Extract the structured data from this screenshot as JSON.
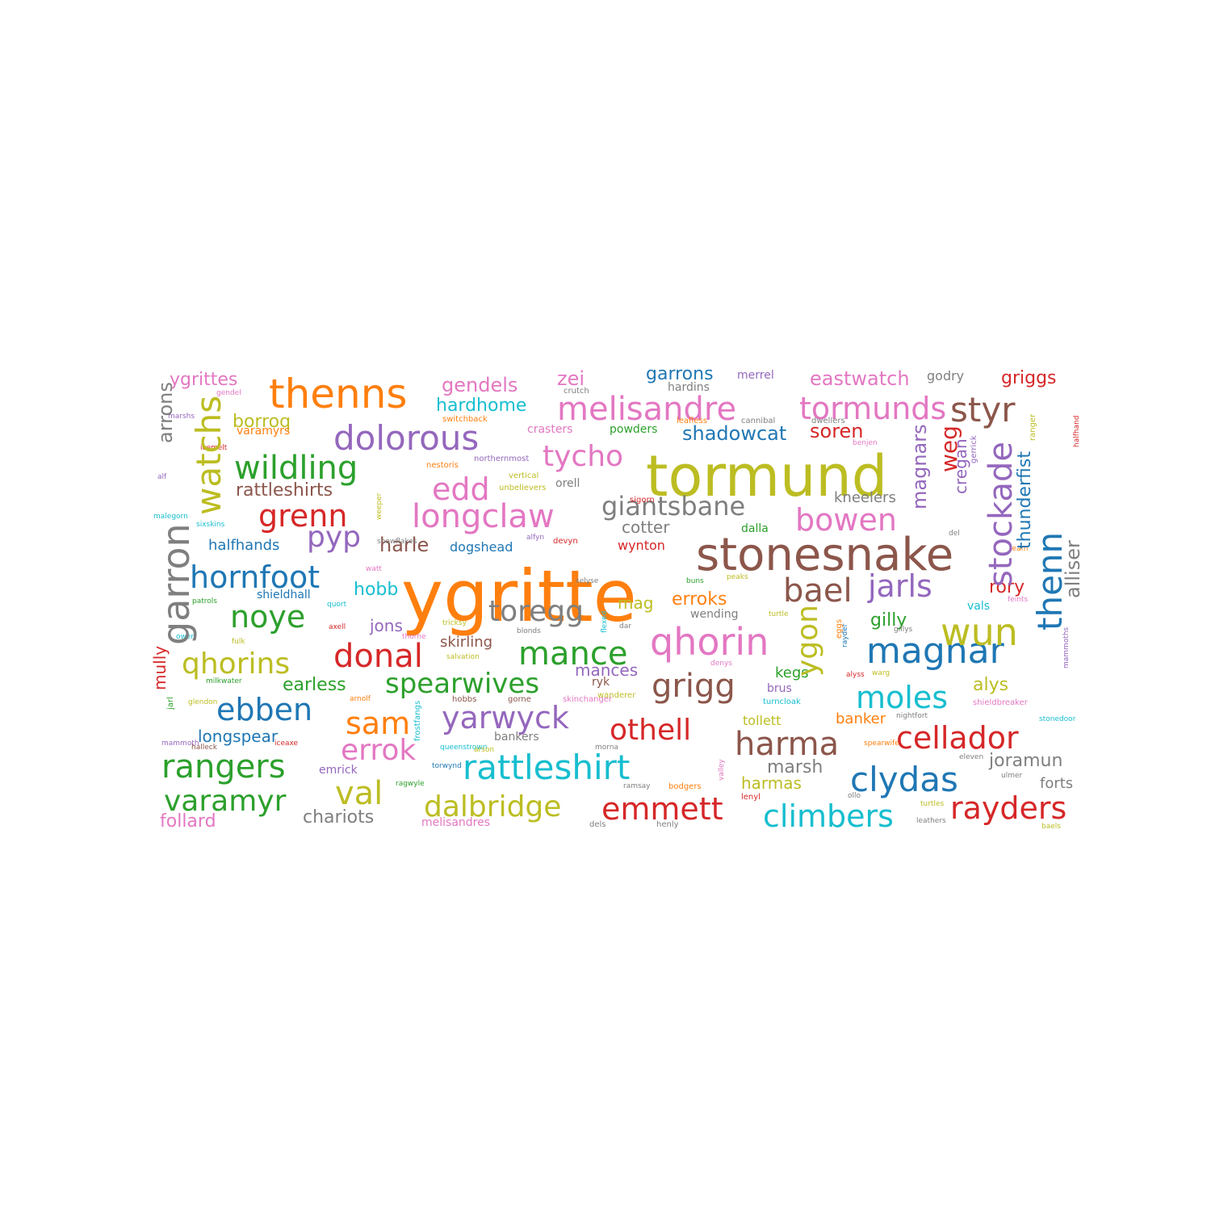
{
  "palette": {
    "blue": "#1f77b4",
    "orange": "#ff7f0e",
    "green": "#2ca02c",
    "red": "#d62728",
    "purple": "#9467bd",
    "brown": "#8c564b",
    "pink": "#e377c2",
    "gray": "#7f7f7f",
    "olive": "#bcbd22",
    "cyan": "#17becf"
  },
  "words": [
    {
      "text": "ygritte",
      "color": "orange"
    },
    {
      "text": "tormund",
      "color": "olive"
    },
    {
      "text": "stonesnake",
      "color": "brown"
    },
    {
      "text": "thenns",
      "color": "orange"
    },
    {
      "text": "melisandre",
      "color": "pink"
    },
    {
      "text": "tormunds",
      "color": "pink"
    },
    {
      "text": "styr",
      "color": "brown"
    },
    {
      "text": "dolorous",
      "color": "purple"
    },
    {
      "text": "wildling",
      "color": "green"
    },
    {
      "text": "tycho",
      "color": "pink"
    },
    {
      "text": "edd",
      "color": "pink"
    },
    {
      "text": "longclaw",
      "color": "pink"
    },
    {
      "text": "giantsbane",
      "color": "gray"
    },
    {
      "text": "grenn",
      "color": "red"
    },
    {
      "text": "pyp",
      "color": "purple"
    },
    {
      "text": "bowen",
      "color": "pink"
    },
    {
      "text": "hornfoot",
      "color": "blue"
    },
    {
      "text": "noye",
      "color": "green"
    },
    {
      "text": "toregg",
      "color": "gray"
    },
    {
      "text": "bael",
      "color": "brown"
    },
    {
      "text": "jarls",
      "color": "purple"
    },
    {
      "text": "qhorin",
      "color": "pink"
    },
    {
      "text": "magnar",
      "color": "blue"
    },
    {
      "text": "wun",
      "color": "olive"
    },
    {
      "text": "qhorins",
      "color": "olive"
    },
    {
      "text": "donal",
      "color": "red"
    },
    {
      "text": "mance",
      "color": "green"
    },
    {
      "text": "grigg",
      "color": "brown"
    },
    {
      "text": "moles",
      "color": "cyan"
    },
    {
      "text": "ebben",
      "color": "blue"
    },
    {
      "text": "spearwives",
      "color": "green"
    },
    {
      "text": "yarwyck",
      "color": "purple"
    },
    {
      "text": "sam",
      "color": "orange"
    },
    {
      "text": "othell",
      "color": "red"
    },
    {
      "text": "harma",
      "color": "brown"
    },
    {
      "text": "cellador",
      "color": "red"
    },
    {
      "text": "errok",
      "color": "pink"
    },
    {
      "text": "rangers",
      "color": "green"
    },
    {
      "text": "val",
      "color": "olive"
    },
    {
      "text": "rattleshirt",
      "color": "cyan"
    },
    {
      "text": "clydas",
      "color": "blue"
    },
    {
      "text": "varamyr",
      "color": "green"
    },
    {
      "text": "dalbridge",
      "color": "olive"
    },
    {
      "text": "emmett",
      "color": "red"
    },
    {
      "text": "climbers",
      "color": "cyan"
    },
    {
      "text": "rayders",
      "color": "red"
    },
    {
      "text": "ygrittes",
      "color": "pink"
    },
    {
      "text": "gendels",
      "color": "pink"
    },
    {
      "text": "zei",
      "color": "pink"
    },
    {
      "text": "garrons",
      "color": "blue"
    },
    {
      "text": "merrel",
      "color": "purple"
    },
    {
      "text": "eastwatch",
      "color": "pink"
    },
    {
      "text": "godry",
      "color": "gray"
    },
    {
      "text": "griggs",
      "color": "red"
    },
    {
      "text": "hardhome",
      "color": "cyan"
    },
    {
      "text": "borroq",
      "color": "olive"
    },
    {
      "text": "shadowcat",
      "color": "blue"
    },
    {
      "text": "soren",
      "color": "red"
    },
    {
      "text": "rattleshirts",
      "color": "brown"
    },
    {
      "text": "kneelers",
      "color": "gray"
    },
    {
      "text": "cotter",
      "color": "gray"
    },
    {
      "text": "harle",
      "color": "brown"
    },
    {
      "text": "halfhands",
      "color": "blue"
    },
    {
      "text": "dogshead",
      "color": "blue"
    },
    {
      "text": "wynton",
      "color": "red"
    },
    {
      "text": "hobb",
      "color": "cyan"
    },
    {
      "text": "shieldhall",
      "color": "blue"
    },
    {
      "text": "mag",
      "color": "olive"
    },
    {
      "text": "erroks",
      "color": "orange"
    },
    {
      "text": "rory",
      "color": "red"
    },
    {
      "text": "gilly",
      "color": "green"
    },
    {
      "text": "jons",
      "color": "purple"
    },
    {
      "text": "skirling",
      "color": "brown"
    },
    {
      "text": "mances",
      "color": "purple"
    },
    {
      "text": "kegs",
      "color": "green"
    },
    {
      "text": "alys",
      "color": "olive"
    },
    {
      "text": "earless",
      "color": "green"
    },
    {
      "text": "longspear",
      "color": "blue"
    },
    {
      "text": "banker",
      "color": "orange"
    },
    {
      "text": "marsh",
      "color": "gray"
    },
    {
      "text": "joramun",
      "color": "gray"
    },
    {
      "text": "harmas",
      "color": "olive"
    },
    {
      "text": "forts",
      "color": "gray"
    },
    {
      "text": "emrick",
      "color": "purple"
    },
    {
      "text": "follard",
      "color": "pink"
    },
    {
      "text": "chariots",
      "color": "gray"
    },
    {
      "text": "melisandres",
      "color": "pink"
    },
    {
      "text": "brus",
      "color": "purple"
    },
    {
      "text": "tollett",
      "color": "olive"
    },
    {
      "text": "wending",
      "color": "gray"
    },
    {
      "text": "powders",
      "color": "green"
    },
    {
      "text": "crasters",
      "color": "pink"
    },
    {
      "text": "orell",
      "color": "gray"
    },
    {
      "text": "dalla",
      "color": "green"
    },
    {
      "text": "hardins",
      "color": "gray"
    },
    {
      "text": "cannibal",
      "color": "gray"
    },
    {
      "text": "dwellers",
      "color": "gray"
    },
    {
      "text": "leafless",
      "color": "orange"
    },
    {
      "text": "sigorn",
      "color": "red"
    },
    {
      "text": "vertical",
      "color": "olive"
    },
    {
      "text": "unbelievers",
      "color": "olive"
    },
    {
      "text": "northernmost",
      "color": "purple"
    },
    {
      "text": "nestoris",
      "color": "orange"
    },
    {
      "text": "switchback",
      "color": "orange"
    },
    {
      "text": "crutch",
      "color": "gray"
    },
    {
      "text": "gendel",
      "color": "pink"
    },
    {
      "text": "marshs",
      "color": "purple"
    },
    {
      "text": "varamyrs",
      "color": "orange"
    },
    {
      "text": "icemelt",
      "color": "red"
    },
    {
      "text": "alf",
      "color": "purple"
    },
    {
      "text": "malegorn",
      "color": "cyan"
    },
    {
      "text": "sixskins",
      "color": "cyan"
    },
    {
      "text": "snowflakes",
      "color": "gray"
    },
    {
      "text": "alfyn",
      "color": "purple"
    },
    {
      "text": "devyn",
      "color": "red"
    },
    {
      "text": "watt",
      "color": "pink"
    },
    {
      "text": "selyse",
      "color": "gray"
    },
    {
      "text": "buns",
      "color": "green"
    },
    {
      "text": "peaks",
      "color": "olive"
    },
    {
      "text": "patrols",
      "color": "green"
    },
    {
      "text": "quort",
      "color": "cyan"
    },
    {
      "text": "tricksy",
      "color": "olive"
    },
    {
      "text": "thorne",
      "color": "pink"
    },
    {
      "text": "blonds",
      "color": "gray"
    },
    {
      "text": "dar",
      "color": "gray"
    },
    {
      "text": "turtle",
      "color": "olive"
    },
    {
      "text": "axell",
      "color": "red"
    },
    {
      "text": "owen",
      "color": "cyan"
    },
    {
      "text": "fulk",
      "color": "olive"
    },
    {
      "text": "salvation",
      "color": "olive"
    },
    {
      "text": "denys",
      "color": "pink"
    },
    {
      "text": "milkwater",
      "color": "green"
    },
    {
      "text": "glendon",
      "color": "olive"
    },
    {
      "text": "arnolf",
      "color": "orange"
    },
    {
      "text": "hobbs",
      "color": "brown"
    },
    {
      "text": "gorne",
      "color": "brown"
    },
    {
      "text": "skinchanger",
      "color": "pink"
    },
    {
      "text": "wanderer",
      "color": "olive"
    },
    {
      "text": "ryk",
      "color": "brown"
    },
    {
      "text": "turncloak",
      "color": "cyan"
    },
    {
      "text": "mammoth",
      "color": "purple"
    },
    {
      "text": "halleck",
      "color": "brown"
    },
    {
      "text": "iceaxe",
      "color": "red"
    },
    {
      "text": "bankers",
      "color": "gray"
    },
    {
      "text": "queenstrown",
      "color": "cyan"
    },
    {
      "text": "arson",
      "color": "olive"
    },
    {
      "text": "morna",
      "color": "gray"
    },
    {
      "text": "torwynd",
      "color": "blue"
    },
    {
      "text": "ragwyle",
      "color": "green"
    },
    {
      "text": "ramsay",
      "color": "gray"
    },
    {
      "text": "bodgers",
      "color": "orange"
    },
    {
      "text": "lenyl",
      "color": "red"
    },
    {
      "text": "ollo",
      "color": "gray"
    },
    {
      "text": "turtles",
      "color": "olive"
    },
    {
      "text": "leathers",
      "color": "gray"
    },
    {
      "text": "dels",
      "color": "gray"
    },
    {
      "text": "henly",
      "color": "gray"
    },
    {
      "text": "nightfort",
      "color": "gray"
    },
    {
      "text": "shieldbreaker",
      "color": "pink"
    },
    {
      "text": "stonedoor",
      "color": "cyan"
    },
    {
      "text": "spearwife",
      "color": "orange"
    },
    {
      "text": "eleven",
      "color": "gray"
    },
    {
      "text": "ulmer",
      "color": "gray"
    },
    {
      "text": "alyss",
      "color": "red"
    },
    {
      "text": "warg",
      "color": "olive"
    },
    {
      "text": "vals",
      "color": "cyan"
    },
    {
      "text": "feints",
      "color": "pink"
    },
    {
      "text": "team",
      "color": "orange"
    },
    {
      "text": "del",
      "color": "gray"
    },
    {
      "text": "baels",
      "color": "olive"
    },
    {
      "text": "gillys",
      "color": "gray"
    },
    {
      "text": "benjen",
      "color": "pink"
    },
    {
      "text": "arrons",
      "color": "gray"
    },
    {
      "text": "watchs",
      "color": "olive"
    },
    {
      "text": "garron",
      "color": "gray"
    },
    {
      "text": "mully",
      "color": "red"
    },
    {
      "text": "jarl",
      "color": "green"
    },
    {
      "text": "frostfangs",
      "color": "cyan"
    },
    {
      "text": "flexed",
      "color": "cyan"
    },
    {
      "text": "weeper",
      "color": "olive"
    },
    {
      "text": "ygon",
      "color": "olive"
    },
    {
      "text": "eggs",
      "color": "orange"
    },
    {
      "text": "rayder",
      "color": "blue"
    },
    {
      "text": "magnars",
      "color": "purple"
    },
    {
      "text": "weg",
      "color": "red"
    },
    {
      "text": "cregan",
      "color": "purple"
    },
    {
      "text": "gerrick",
      "color": "purple"
    },
    {
      "text": "stockade",
      "color": "purple"
    },
    {
      "text": "thunderfist",
      "color": "blue"
    },
    {
      "text": "thenn",
      "color": "blue"
    },
    {
      "text": "alliser",
      "color": "gray"
    },
    {
      "text": "ranger",
      "color": "olive"
    },
    {
      "text": "halfhand",
      "color": "red"
    },
    {
      "text": "mammoths",
      "color": "purple"
    },
    {
      "text": "valley",
      "color": "pink"
    },
    {
      "text": "emmetts",
      "color": "orange"
    },
    {
      "text": "lightbringer",
      "color": "purple"
    },
    {
      "text": "satins",
      "color": "cyan"
    }
  ]
}
